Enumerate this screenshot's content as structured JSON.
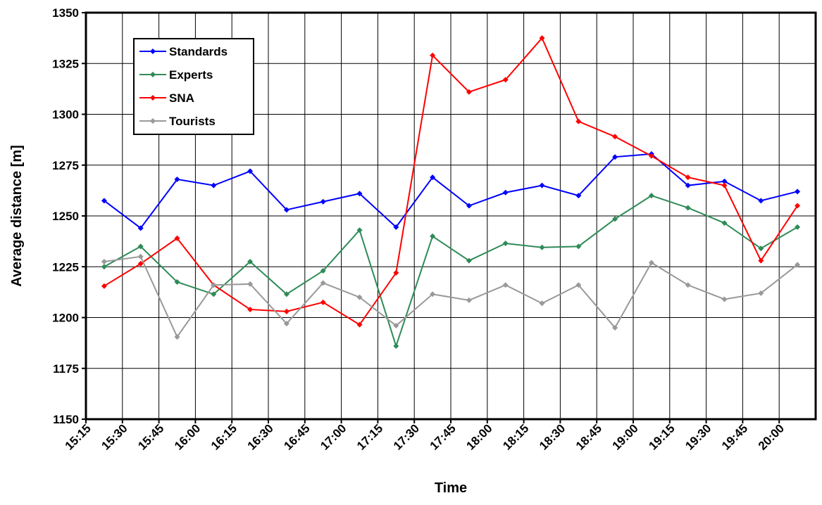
{
  "chart_data": {
    "type": "line",
    "x_label": "Time",
    "y_label": "Average distance [m]",
    "x": [
      922.5,
      937.5,
      952.5,
      967.5,
      982.5,
      997.5,
      1012.5,
      1027.5,
      1042.5,
      1057.5,
      1072.5,
      1087.5,
      1102.5,
      1117.5,
      1132.5,
      1147.5,
      1162.5,
      1177.5,
      1192.5,
      1207.5
    ],
    "xlim": [
      915,
      1215
    ],
    "xticks": [
      {
        "value": 915,
        "label": "15:15"
      },
      {
        "value": 930,
        "label": "15:30"
      },
      {
        "value": 945,
        "label": "15:45"
      },
      {
        "value": 960,
        "label": "16:00"
      },
      {
        "value": 975,
        "label": "16:15"
      },
      {
        "value": 990,
        "label": "16:30"
      },
      {
        "value": 1005,
        "label": "16:45"
      },
      {
        "value": 1020,
        "label": "17:00"
      },
      {
        "value": 1035,
        "label": "17:15"
      },
      {
        "value": 1050,
        "label": "17:30"
      },
      {
        "value": 1065,
        "label": "17:45"
      },
      {
        "value": 1080,
        "label": "18:00"
      },
      {
        "value": 1095,
        "label": "18:15"
      },
      {
        "value": 1110,
        "label": "18:30"
      },
      {
        "value": 1125,
        "label": "18:45"
      },
      {
        "value": 1140,
        "label": "19:00"
      },
      {
        "value": 1155,
        "label": "19:15"
      },
      {
        "value": 1170,
        "label": "19:30"
      },
      {
        "value": 1185,
        "label": "19:45"
      },
      {
        "value": 1200,
        "label": "20:00"
      }
    ],
    "ylim": [
      1150,
      1350
    ],
    "yticks": [
      1150,
      1175,
      1200,
      1225,
      1250,
      1275,
      1300,
      1325,
      1350
    ],
    "grid": true,
    "legend": "upper-left",
    "series": [
      {
        "name": "Standards",
        "color": "#0000ff",
        "values": [
          1257.5,
          1244,
          1268,
          1265,
          1272,
          1253,
          1257,
          1261,
          1244.5,
          1269,
          1255,
          1261.5,
          1265,
          1260,
          1279,
          1280.5,
          1265,
          1267,
          1257.5,
          1262
        ]
      },
      {
        "name": "Experts",
        "color": "#2e8b57",
        "values": [
          1225,
          1235,
          1217.5,
          1211.5,
          1227.5,
          1211.5,
          1223,
          1243,
          1186,
          1240,
          1228,
          1236.5,
          1234.5,
          1235,
          1248.5,
          1260,
          1254,
          1246.5,
          1234,
          1244.5
        ]
      },
      {
        "name": "SNA",
        "color": "#ff0000",
        "values": [
          1215.5,
          1226.5,
          1239,
          1216,
          1204,
          1203,
          1207.5,
          1196.5,
          1222,
          1329,
          1311,
          1317,
          1337.5,
          1296.5,
          1289,
          1279.5,
          1269,
          1265,
          1228,
          1255
        ]
      },
      {
        "name": "Tourists",
        "color": "#999999",
        "values": [
          1227.5,
          1230,
          1190.5,
          1216,
          1216.5,
          1197,
          1217,
          1210,
          1196,
          1211.5,
          1208.5,
          1216,
          1207,
          1216,
          1195,
          1227,
          1216,
          1209,
          1212,
          1226
        ]
      }
    ]
  }
}
